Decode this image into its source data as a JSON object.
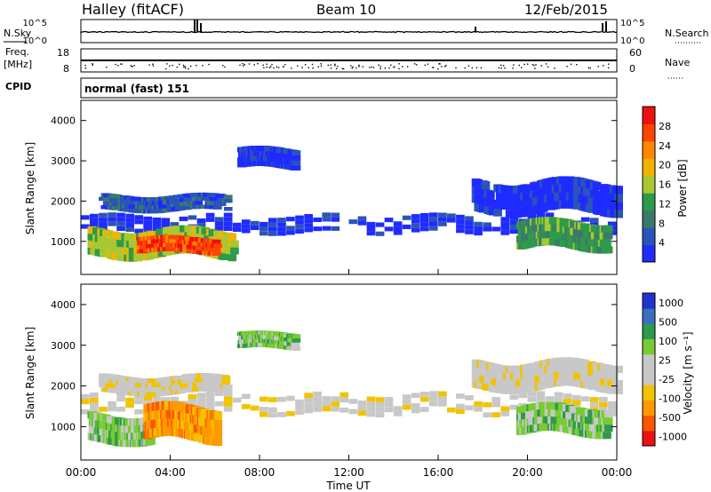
{
  "header": {
    "station": "Halley (fitACF)",
    "beam": "Beam 10",
    "date": "12/Feb/2015"
  },
  "panels": {
    "nsky_label": "N.Sky",
    "nsearch_label": "N.Search",
    "freq_label_line1": "Freq.",
    "freq_label_line2": "[MHz]",
    "nave_label": "Nave",
    "cpid_label": "CPID",
    "cpid_text": "normal (fast) 151",
    "noise_ticks_left": [
      "10^5",
      "10^0"
    ],
    "noise_ticks_right": [
      "10^5",
      "10^0"
    ],
    "freq_ticks": [
      "18",
      "8"
    ],
    "nave_ticks": [
      "60",
      "0"
    ]
  },
  "colors": {
    "power_scale": [
      "#1f2bff",
      "#2a55b8",
      "#3b7a6a",
      "#2e9a4a",
      "#a8c832",
      "#f0b400",
      "#ff8800",
      "#ff4400",
      "#ee1111"
    ],
    "velocity_scale": [
      "#ee1111",
      "#ff5500",
      "#ff9900",
      "#f2c300",
      "#c8c8c8",
      "#c8c8c8",
      "#77cc33",
      "#2e9a4a",
      "#3a6fc0",
      "#2233cc"
    ]
  },
  "chart_data": [
    {
      "type": "heatmap",
      "name_panel": "power",
      "ylabel": "Slant Range [km]",
      "yticks": [
        "1000",
        "2000",
        "3000",
        "4000"
      ],
      "colorbar_label": "Power [dB]",
      "colorbar_ticks": [
        "4",
        "8",
        "12",
        "16",
        "20",
        "24",
        "28"
      ],
      "xlim": [
        0,
        24
      ],
      "ylim": [
        180,
        4500
      ],
      "bands": [
        {
          "t0": 0.0,
          "t1": 24.0,
          "r0": 1200,
          "r1": 1650,
          "color_index": 0
        },
        {
          "t0": 0.8,
          "t1": 6.5,
          "r0": 1750,
          "r1": 2150,
          "color_index": 1
        },
        {
          "t0": 0.3,
          "t1": 6.8,
          "r0": 600,
          "r1": 1300,
          "color_index": 4
        },
        {
          "t0": 2.5,
          "t1": 6.0,
          "r0": 700,
          "r1": 1100,
          "color_index": 7
        },
        {
          "t0": 7.0,
          "t1": 9.5,
          "r0": 2800,
          "r1": 3300,
          "color_index": 0
        },
        {
          "t0": 17.5,
          "t1": 24.0,
          "r0": 1700,
          "r1": 2500,
          "color_index": 0
        },
        {
          "t0": 19.5,
          "t1": 23.5,
          "r0": 800,
          "r1": 1500,
          "color_index": 3
        }
      ]
    },
    {
      "type": "heatmap",
      "name_panel": "velocity",
      "ylabel": "Slant Range [km]",
      "yticks": [
        "1000",
        "2000",
        "3000",
        "4000"
      ],
      "colorbar_label": "Velocity [m s⁻¹]",
      "colorbar_ticks": [
        "1000",
        "500",
        "100",
        "25",
        "-25",
        "-100",
        "-500",
        "-1000"
      ],
      "xlabel": "Time UT",
      "xticks": [
        "00:00",
        "04:00",
        "08:00",
        "12:00",
        "16:00",
        "20:00",
        "00:00"
      ],
      "xlim": [
        0,
        24
      ],
      "ylim": [
        180,
        4500
      ],
      "bands": [
        {
          "t0": 0.0,
          "t1": 24.0,
          "r0": 1300,
          "r1": 1800,
          "color_index": 4
        },
        {
          "t0": 0.8,
          "t1": 6.5,
          "r0": 1800,
          "r1": 2250,
          "color_index": 4
        },
        {
          "t0": 0.3,
          "t1": 3.0,
          "r0": 600,
          "r1": 1300,
          "color_index": 6
        },
        {
          "t0": 2.8,
          "t1": 6.0,
          "r0": 650,
          "r1": 1500,
          "color_index": 2
        },
        {
          "t0": 7.0,
          "t1": 9.5,
          "r0": 2900,
          "r1": 3300,
          "color_index": 6
        },
        {
          "t0": 17.5,
          "t1": 24.0,
          "r0": 1900,
          "r1": 2600,
          "color_index": 4
        },
        {
          "t0": 19.5,
          "t1": 23.5,
          "r0": 800,
          "r1": 1500,
          "color_index": 6
        }
      ]
    }
  ]
}
